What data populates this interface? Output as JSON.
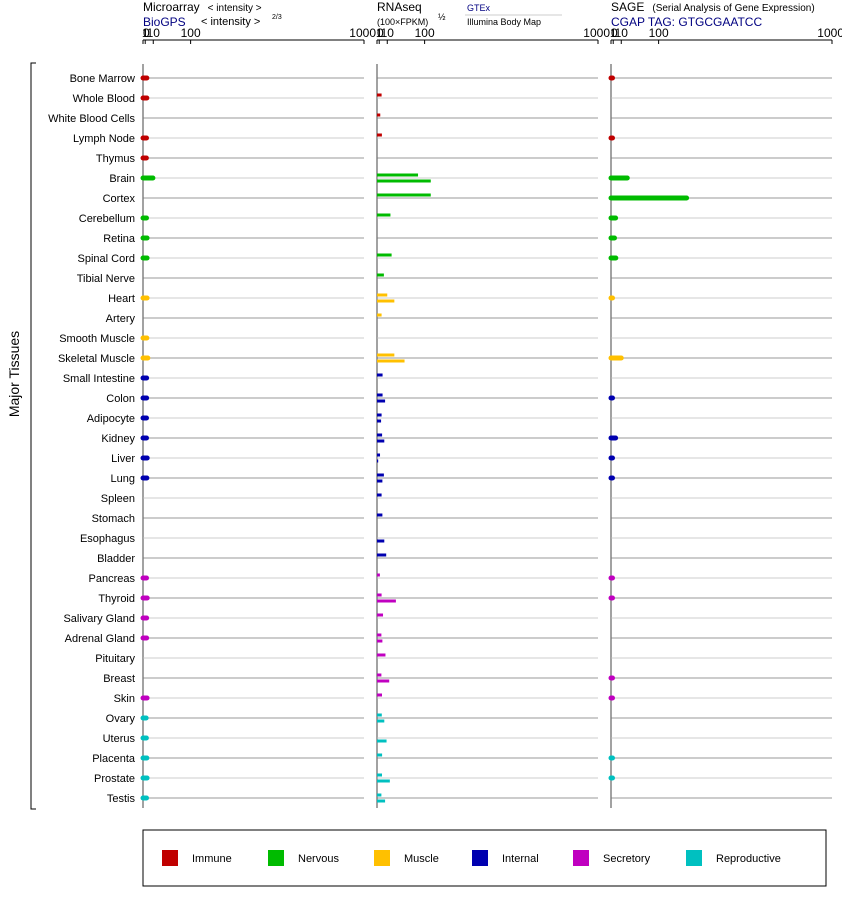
{
  "chart_data": {
    "type": "bar",
    "group_label": "Major Tissues",
    "tick_labels": [
      "0",
      "1",
      "10",
      "100",
      "1000"
    ],
    "tick_values": [
      0,
      1,
      10,
      100,
      1000
    ],
    "xlim": [
      0,
      1000
    ],
    "categories": [
      "Bone Marrow",
      "Whole Blood",
      "White Blood Cells",
      "Lymph Node",
      "Thymus",
      "Brain",
      "Cortex",
      "Cerebellum",
      "Retina",
      "Spinal Cord",
      "Tibial Nerve",
      "Heart",
      "Artery",
      "Smooth Muscle",
      "Skeletal Muscle",
      "Small Intestine",
      "Colon",
      "Adipocyte",
      "Kidney",
      "Liver",
      "Lung",
      "Spleen",
      "Stomach",
      "Esophagus",
      "Bladder",
      "Pancreas",
      "Thyroid",
      "Salivary Gland",
      "Adrenal Gland",
      "Pituitary",
      "Breast",
      "Skin",
      "Ovary",
      "Uterus",
      "Placenta",
      "Prostate",
      "Testis"
    ],
    "groups": [
      "immune",
      "immune",
      "immune",
      "immune",
      "immune",
      "nervous",
      "nervous",
      "nervous",
      "nervous",
      "nervous",
      "nervous",
      "muscle",
      "muscle",
      "muscle",
      "muscle",
      "internal",
      "internal",
      "internal",
      "internal",
      "internal",
      "internal",
      "internal",
      "internal",
      "internal",
      "internal",
      "secretory",
      "secretory",
      "secretory",
      "secretory",
      "secretory",
      "secretory",
      "secretory",
      "reproductive",
      "reproductive",
      "reproductive",
      "reproductive",
      "reproductive"
    ],
    "panels": [
      {
        "title": "Microarray",
        "title_note": "< intensity >",
        "title_note_exponent": "2/3",
        "subtitle": "BioGPS",
        "values": [
          2.3,
          2.3,
          null,
          2.0,
          1.9,
          9.5,
          null,
          2.0,
          2.5,
          2.5,
          null,
          2.5,
          null,
          2.3,
          3.2,
          2.1,
          2.1,
          2.0,
          2.0,
          2.6,
          2.3,
          null,
          null,
          null,
          null,
          2.0,
          2.6,
          2.1,
          2.1,
          null,
          null,
          2.5,
          1.7,
          1.9,
          2.3,
          2.5,
          2.0
        ]
      },
      {
        "title": "RNAseq",
        "title_note": "",
        "subtitle": "(100×FPKM)",
        "subtitle_exponent": "½",
        "source_a": "GTEx",
        "source_b": "Illumina Body Map",
        "series_a": [
          null,
          3.0,
          1.8,
          3.3,
          null,
          80,
          120,
          15,
          null,
          17,
          5.5,
          10,
          3.0,
          null,
          22,
          4.0,
          4.0,
          3.0,
          3.5,
          1.6,
          5.5,
          3.0,
          3.8,
          null,
          8.5,
          1.5,
          3.0,
          4.5,
          2.8,
          7.5,
          2.8,
          3.4,
          3.2,
          null,
          3.5,
          3.4,
          2.8
        ],
        "series_b": [
          null,
          null,
          null,
          null,
          null,
          120,
          null,
          null,
          null,
          null,
          null,
          22,
          null,
          null,
          44,
          null,
          7.0,
          2.5,
          6.0,
          0.4,
          3.8,
          null,
          null,
          6.0,
          null,
          null,
          25,
          null,
          3.8,
          null,
          13,
          null,
          6.0,
          9.0,
          null,
          14,
          7.0
        ]
      },
      {
        "title": "SAGE",
        "title_note": "(Serial Analysis of Gene Expression)",
        "subtitle": "CGAP TAG: GTGCGAATCC",
        "values": [
          0.02,
          null,
          null,
          0.02,
          null,
          20,
          200,
          3.0,
          2.0,
          3.2,
          null,
          0.01,
          null,
          null,
          10,
          null,
          0.02,
          null,
          3.0,
          0.02,
          0.02,
          null,
          null,
          null,
          null,
          0.02,
          0.02,
          null,
          null,
          null,
          0.02,
          0.02,
          null,
          null,
          0.02,
          0.02,
          null
        ]
      }
    ],
    "legend": [
      {
        "label": "Immune",
        "color": "#c00000"
      },
      {
        "label": "Nervous",
        "color": "#00bb00"
      },
      {
        "label": "Muscle",
        "color": "#ffc000"
      },
      {
        "label": "Internal",
        "color": "#0000b0"
      },
      {
        "label": "Secretory",
        "color": "#c000c0"
      },
      {
        "label": "Reproductive",
        "color": "#00c0c0"
      }
    ],
    "group_colors": {
      "immune": "#c00000",
      "nervous": "#00bb00",
      "muscle": "#ffc000",
      "internal": "#0000b0",
      "secretory": "#c000c0",
      "reproductive": "#00c0c0"
    },
    "subtitle_color": "#000080",
    "legend_placement": "bottom"
  }
}
